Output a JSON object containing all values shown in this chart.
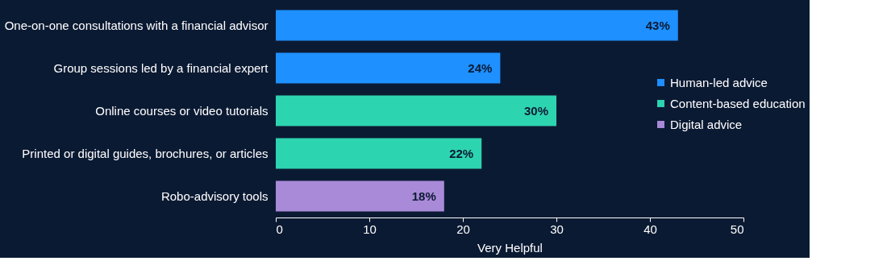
{
  "chart_data": {
    "type": "bar",
    "orientation": "horizontal",
    "xlabel": "Very Helpful",
    "categories": [
      "One-on-one consultations with a financial advisor",
      "Group sessions led by a financial expert",
      "Online courses or video tutorials",
      "Printed or digital guides, brochures, or articles",
      "Robo-advisory tools"
    ],
    "series": [
      {
        "name": "Human-led advice",
        "color": "#1e90ff",
        "values": [
          43,
          24,
          null,
          null,
          null
        ]
      },
      {
        "name": "Content-based education",
        "color": "#2dd4b0",
        "values": [
          null,
          null,
          30,
          22,
          null
        ]
      },
      {
        "name": "Digital advice",
        "color": "#a98ad8",
        "values": [
          null,
          null,
          null,
          null,
          18
        ]
      }
    ],
    "value_labels": [
      "43%",
      "24%",
      "30%",
      "22%",
      "18%"
    ],
    "xlim": [
      0,
      50
    ],
    "xticks": [
      0,
      10,
      20,
      30,
      40,
      50
    ],
    "grid": false,
    "legend": "right"
  }
}
